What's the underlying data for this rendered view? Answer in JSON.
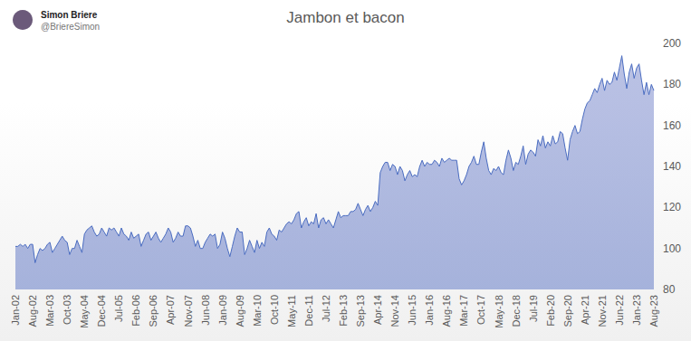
{
  "header": {
    "name": "Simon Briere",
    "handle": "@BriereSimon"
  },
  "chart_data": {
    "type": "area",
    "title": "Jambon et bacon",
    "categories": [
      "Jan-02",
      null,
      null,
      null,
      null,
      null,
      null,
      "Aug-02",
      null,
      null,
      null,
      null,
      null,
      null,
      "Mar-03",
      null,
      null,
      null,
      null,
      null,
      null,
      "Oct-03",
      null,
      null,
      null,
      null,
      null,
      null,
      "May-04",
      null,
      null,
      null,
      null,
      null,
      null,
      "Dec-04",
      null,
      null,
      null,
      null,
      null,
      null,
      "Jul-05",
      null,
      null,
      null,
      null,
      null,
      null,
      "Feb-06",
      null,
      null,
      null,
      null,
      null,
      null,
      "Sep-06",
      null,
      null,
      null,
      null,
      null,
      null,
      "Apr-07",
      null,
      null,
      null,
      null,
      null,
      null,
      "Nov-07",
      null,
      null,
      null,
      null,
      null,
      null,
      "Jun-08",
      null,
      null,
      null,
      null,
      null,
      null,
      "Jan-09",
      null,
      null,
      null,
      null,
      null,
      null,
      "Aug-09",
      null,
      null,
      null,
      null,
      null,
      null,
      "Mar-10",
      null,
      null,
      null,
      null,
      null,
      null,
      "Oct-10",
      null,
      null,
      null,
      null,
      null,
      null,
      "May-11",
      null,
      null,
      null,
      null,
      null,
      null,
      "Dec-11",
      null,
      null,
      null,
      null,
      null,
      null,
      "Jul-12",
      null,
      null,
      null,
      null,
      null,
      null,
      "Feb-13",
      null,
      null,
      null,
      null,
      null,
      null,
      "Sep-13",
      null,
      null,
      null,
      null,
      null,
      null,
      "Apr-14",
      null,
      null,
      null,
      null,
      null,
      null,
      "Nov-14",
      null,
      null,
      null,
      null,
      null,
      null,
      "Jun-15",
      null,
      null,
      null,
      null,
      null,
      null,
      "Jan-16",
      null,
      null,
      null,
      null,
      null,
      null,
      "Aug-16",
      null,
      null,
      null,
      null,
      null,
      null,
      "Mar-17",
      null,
      null,
      null,
      null,
      null,
      null,
      "Oct-17",
      null,
      null,
      null,
      null,
      null,
      null,
      "May-18",
      null,
      null,
      null,
      null,
      null,
      null,
      "Dec-18",
      null,
      null,
      null,
      null,
      null,
      null,
      "Jul-19",
      null,
      null,
      null,
      null,
      null,
      null,
      "Feb-20",
      null,
      null,
      null,
      null,
      null,
      null,
      "Sep-20",
      null,
      null,
      null,
      null,
      null,
      null,
      "Apr-21",
      null,
      null,
      null,
      null,
      null,
      null,
      "Nov-21",
      null,
      null,
      null,
      null,
      null,
      null,
      "Jun-22",
      null,
      null,
      null,
      null,
      null,
      null,
      "Jan-23",
      null,
      null,
      null,
      null,
      null,
      null,
      "Aug-23"
    ],
    "values": [
      101,
      101,
      102,
      101,
      102,
      100,
      102,
      102,
      93,
      97,
      100,
      99,
      100,
      102,
      103,
      98,
      100,
      102,
      104,
      106,
      104,
      103,
      97,
      100,
      100,
      104,
      101,
      98,
      107,
      109,
      110,
      111,
      108,
      106,
      107,
      110,
      108,
      106,
      110,
      109,
      110,
      108,
      106,
      110,
      107,
      106,
      104,
      108,
      105,
      106,
      107,
      101,
      104,
      107,
      108,
      104,
      106,
      108,
      105,
      103,
      105,
      107,
      110,
      108,
      103,
      105,
      108,
      106,
      106,
      111,
      111,
      110,
      106,
      101,
      104,
      100,
      100,
      103,
      105,
      107,
      106,
      107,
      100,
      102,
      108,
      105,
      100,
      96,
      101,
      106,
      110,
      108,
      108,
      97,
      100,
      104,
      101,
      98,
      104,
      100,
      103,
      101,
      108,
      110,
      107,
      106,
      104,
      109,
      108,
      110,
      112,
      113,
      112,
      114,
      117,
      118,
      110,
      113,
      115,
      111,
      113,
      112,
      117,
      110,
      114,
      115,
      112,
      114,
      112,
      110,
      114,
      118,
      115,
      116,
      116,
      116,
      118,
      118,
      119,
      122,
      119,
      116,
      119,
      121,
      118,
      120,
      123,
      121,
      137,
      140,
      142,
      142,
      138,
      141,
      140,
      136,
      140,
      138,
      133,
      136,
      138,
      135,
      136,
      135,
      140,
      143,
      140,
      142,
      141,
      141,
      143,
      142,
      140,
      144,
      142,
      143,
      144,
      143,
      143,
      143,
      134,
      131,
      133,
      136,
      140,
      142,
      145,
      141,
      141,
      147,
      152,
      144,
      138,
      136,
      139,
      138,
      140,
      137,
      136,
      143,
      148,
      144,
      138,
      142,
      141,
      145,
      150,
      141,
      146,
      148,
      147,
      145,
      153,
      150,
      155,
      149,
      152,
      150,
      155,
      151,
      152,
      157,
      156,
      149,
      143,
      153,
      157,
      160,
      156,
      157,
      163,
      168,
      171,
      172,
      175,
      178,
      176,
      180,
      183,
      177,
      182,
      180,
      181,
      186,
      182,
      188,
      194,
      185,
      178,
      186,
      190,
      183,
      188,
      190,
      182,
      175,
      181,
      175,
      180,
      177
    ],
    "color": "#4a6cc0",
    "ylim": [
      80,
      200
    ],
    "yticks": [
      80,
      100,
      120,
      140,
      160,
      180,
      200
    ],
    "grid": false
  }
}
